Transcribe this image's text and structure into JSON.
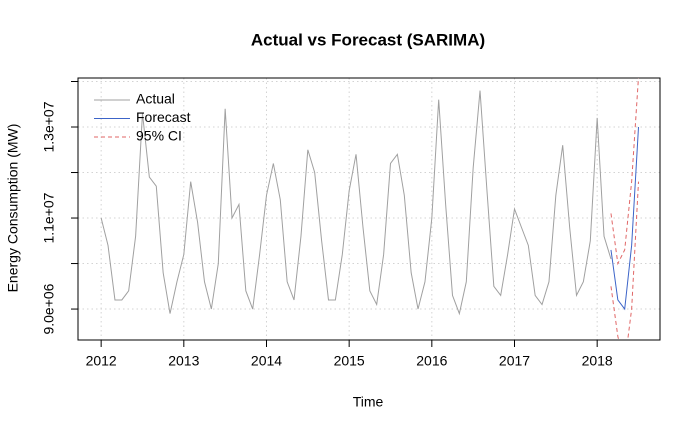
{
  "chart_data": {
    "type": "line",
    "title": "Actual vs Forecast (SARIMA)",
    "x_label": "Time",
    "y_label": "Energy Consumption (MW)",
    "xlim": [
      2011.72,
      2018.76
    ],
    "xticks": [
      2012,
      2013,
      2014,
      2015,
      2016,
      2017,
      2018
    ],
    "ylim": [
      8320000,
      14077000
    ],
    "yticks": [
      {
        "value": 9000000,
        "label": "9.0e+06"
      },
      {
        "value": 10000000,
        "label": null
      },
      {
        "value": 11000000,
        "label": "1.1e+07"
      },
      {
        "value": 12000000,
        "label": null
      },
      {
        "value": 13000000,
        "label": "1.3e+07"
      },
      {
        "value": 14000000,
        "label": null
      }
    ],
    "grid": true,
    "legend": "topleft",
    "series": [
      {
        "name": "Actual",
        "color": "#a0a0a0",
        "x": [
          2012.0,
          2012.083,
          2012.167,
          2012.25,
          2012.333,
          2012.417,
          2012.5,
          2012.583,
          2012.667,
          2012.75,
          2012.833,
          2012.917,
          2013.0,
          2013.083,
          2013.167,
          2013.25,
          2013.333,
          2013.417,
          2013.5,
          2013.583,
          2013.667,
          2013.75,
          2013.833,
          2013.917,
          2014.0,
          2014.083,
          2014.167,
          2014.25,
          2014.333,
          2014.417,
          2014.5,
          2014.583,
          2014.667,
          2014.75,
          2014.833,
          2014.917,
          2015.0,
          2015.083,
          2015.167,
          2015.25,
          2015.333,
          2015.417,
          2015.5,
          2015.583,
          2015.667,
          2015.75,
          2015.833,
          2015.917,
          2016.0,
          2016.083,
          2016.167,
          2016.25,
          2016.333,
          2016.417,
          2016.5,
          2016.583,
          2016.667,
          2016.75,
          2016.833,
          2016.917,
          2017.0,
          2017.083,
          2017.167,
          2017.25,
          2017.333,
          2017.417,
          2017.5,
          2017.583,
          2017.667,
          2017.75,
          2017.833,
          2017.917,
          2018.0,
          2018.083,
          2018.167
        ],
        "values": [
          11000000,
          10400000,
          9200000,
          9200000,
          9400000,
          10600000,
          13300000,
          11900000,
          11700000,
          9800000,
          8900000,
          9600000,
          10200000,
          11800000,
          10900000,
          9600000,
          9000000,
          10000000,
          13400000,
          11000000,
          11300000,
          9400000,
          9000000,
          10200000,
          11500000,
          12200000,
          11400000,
          9600000,
          9200000,
          10600000,
          12500000,
          12000000,
          10500000,
          9200000,
          9200000,
          10200000,
          11600000,
          12400000,
          10800000,
          9400000,
          9100000,
          10200000,
          12200000,
          12400000,
          11500000,
          9800000,
          9000000,
          9600000,
          11000000,
          13600000,
          11300000,
          9300000,
          8900000,
          9600000,
          12100000,
          13800000,
          11600000,
          9500000,
          9300000,
          10200000,
          11200000,
          10800000,
          10400000,
          9300000,
          9100000,
          9600000,
          11500000,
          12600000,
          10800000,
          9300000,
          9600000,
          10500000,
          13200000,
          10600000,
          10100000
        ]
      },
      {
        "name": "Forecast",
        "color": "#3c64c8",
        "x": [
          2018.167,
          2018.25,
          2018.333,
          2018.417,
          2018.5
        ],
        "values": [
          10300000,
          9200000,
          9000000,
          10400000,
          13000000
        ]
      }
    ],
    "ci": {
      "name": "95% CI",
      "color": "#e06666",
      "x": [
        2018.167,
        2018.25,
        2018.333,
        2018.417,
        2018.5
      ],
      "lower": [
        9500000,
        8400000,
        7800000,
        9000000,
        11800000
      ],
      "upper": [
        11100000,
        10000000,
        10300000,
        11800000,
        14100000
      ]
    }
  }
}
